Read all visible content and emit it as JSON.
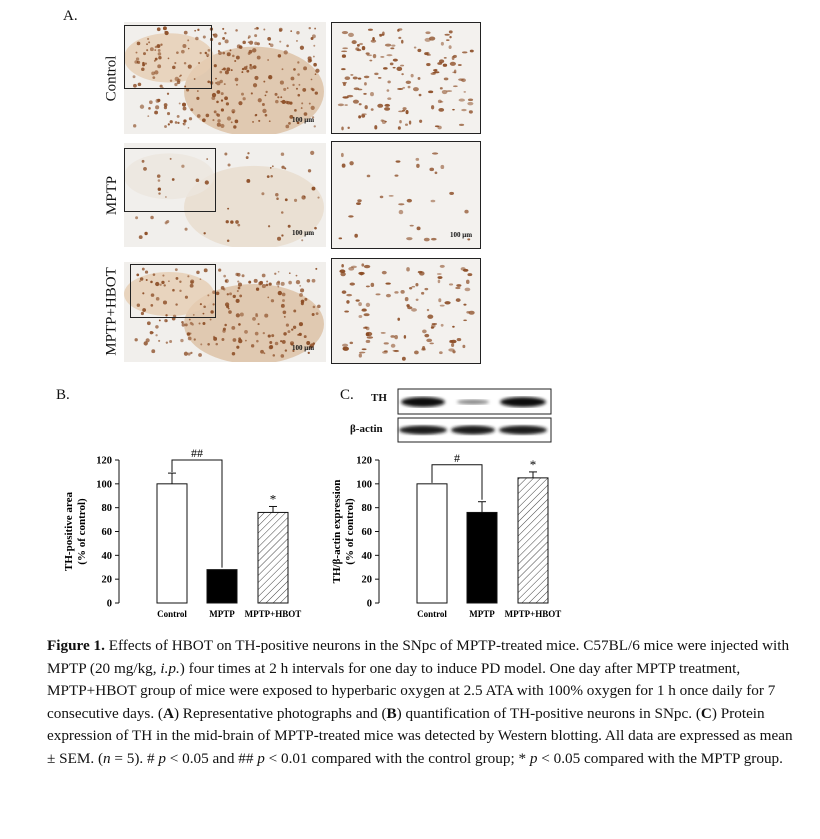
{
  "panelA": {
    "letter": "A.",
    "rows": [
      {
        "label": "Control",
        "scale_main": "100 μm",
        "scale_zoom": ""
      },
      {
        "label": "MPTP",
        "scale_main": "100 μm",
        "scale_zoom": "100 μm"
      },
      {
        "label": "MPTP+HBOT",
        "scale_main": "100 μm",
        "scale_zoom": ""
      }
    ]
  },
  "panelB": {
    "letter": "B."
  },
  "panelC": {
    "letter": "C.",
    "blot_labels": [
      "TH",
      "β-actin"
    ]
  },
  "colors": {
    "control_fill": "#ffffff",
    "mptp_fill": "#000000",
    "hbot_fill": "hatched",
    "stain": "#8a4a22"
  },
  "chart_data": [
    {
      "type": "bar",
      "categories": [
        "Control",
        "MPTP",
        "MPTP+HBOT"
      ],
      "values": [
        100,
        28,
        76
      ],
      "errors": [
        9,
        0,
        5
      ],
      "ylabel": "TH-positive area (% of control)",
      "ylim": [
        0,
        120
      ],
      "yticks": [
        "0",
        "20",
        "40",
        "60",
        "80",
        "100",
        "120"
      ],
      "annotations": [
        {
          "text": "##",
          "between": [
            "Control",
            "MPTP"
          ]
        },
        {
          "text": "*",
          "on": "MPTP+HBOT"
        }
      ]
    },
    {
      "type": "bar",
      "categories": [
        "Control",
        "MPTP",
        "MPTP+HBOT"
      ],
      "values": [
        100,
        76,
        105
      ],
      "errors": [
        0,
        9,
        5
      ],
      "ylabel": "TH/β-actin expression (% of control)",
      "ylim": [
        0,
        120
      ],
      "yticks": [
        "0",
        "20",
        "40",
        "60",
        "80",
        "100",
        "120"
      ],
      "annotations": [
        {
          "text": "#",
          "between": [
            "Control",
            "MPTP"
          ]
        },
        {
          "text": "*",
          "on": "MPTP+HBOT"
        }
      ]
    }
  ],
  "caption": {
    "label": "Figure 1.",
    "s1": " Effects of HBOT on TH-positive neurons in the SNpc of MPTP-treated mice. C57BL/6 mice were injected with MPTP (20 mg/kg, ",
    "ip": "i.p.",
    "s2": ") four times at 2 h intervals for one day to induce PD model. One day after MPTP treatment, MPTP+HBOT group of mice were exposed to hyperbaric oxygen at 2.5 ATA with 100% oxygen for 1 h once daily for 7 consecutive days. (",
    "A": "A",
    "s3": ") Representative photographs and (",
    "B": "B",
    "s4": ") quantification of TH-positive neurons in SNpc. (",
    "C": "C",
    "s5": ") Protein expression of TH in the mid-brain of MPTP-treated mice was detected by Western blotting. All data are expressed as mean ± SEM. (",
    "n": "n",
    "s6": " = 5). # ",
    "p1": "p",
    "s7": " < 0.05 and ## ",
    "p2": "p",
    "s8": " < 0.01 compared with the control group; * ",
    "p3": "p",
    "s9": " < 0.05 compared with the MPTP group."
  }
}
